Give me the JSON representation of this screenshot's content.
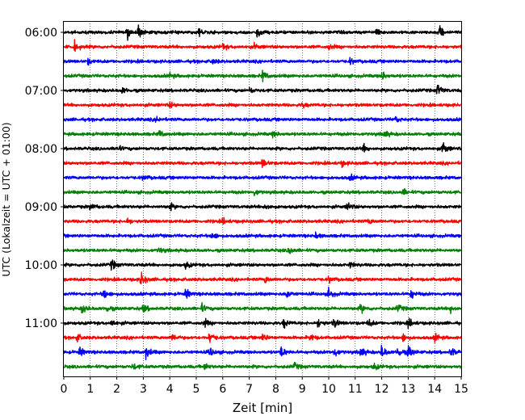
{
  "chart_data": {
    "type": "line",
    "title": "",
    "xlabel": "Zeit  [min]",
    "ylabel": "UTC (Lokalzeit = UTC + 01:00)",
    "xlim": [
      0,
      15
    ],
    "x_ticks": [
      "0",
      "1",
      "2",
      "3",
      "4",
      "5",
      "6",
      "7",
      "8",
      "9",
      "10",
      "11",
      "12",
      "13",
      "14",
      "15"
    ],
    "y_ticks": [
      "06:00",
      "07:00",
      "08:00",
      "09:00",
      "10:00",
      "11:00"
    ],
    "grid": "vertical dotted at each minute",
    "legend": "none",
    "trace_colors": [
      "#000000",
      "#ff0000",
      "#0000ff",
      "#008000"
    ],
    "series": [
      {
        "start": "06:00",
        "color": "#000000",
        "events": [
          [
            2.4,
            9
          ],
          [
            2.8,
            9
          ],
          [
            5.1,
            7
          ],
          [
            7.3,
            8
          ],
          [
            11.8,
            6
          ],
          [
            14.2,
            10
          ]
        ]
      },
      {
        "start": "06:15",
        "color": "#ff0000",
        "events": [
          [
            0.4,
            7
          ],
          [
            6.0,
            4
          ],
          [
            7.2,
            4
          ],
          [
            10.0,
            4
          ]
        ]
      },
      {
        "start": "06:30",
        "color": "#0000ff",
        "events": [
          [
            0.9,
            4
          ],
          [
            5.6,
            4
          ],
          [
            10.8,
            4
          ]
        ]
      },
      {
        "start": "06:45",
        "color": "#008000",
        "events": [
          [
            7.5,
            8
          ],
          [
            12.0,
            7
          ],
          [
            4.0,
            4
          ]
        ]
      },
      {
        "start": "07:00",
        "color": "#000000",
        "events": [
          [
            2.2,
            5
          ],
          [
            7.0,
            4
          ],
          [
            14.1,
            10
          ]
        ]
      },
      {
        "start": "07:15",
        "color": "#ff0000",
        "events": [
          [
            4.0,
            4
          ],
          [
            9.0,
            4
          ]
        ]
      },
      {
        "start": "07:30",
        "color": "#0000ff",
        "events": [
          [
            3.5,
            4
          ],
          [
            12.5,
            5
          ]
        ]
      },
      {
        "start": "07:45",
        "color": "#008000",
        "events": [
          [
            3.6,
            5
          ],
          [
            7.9,
            5
          ],
          [
            12.1,
            6
          ]
        ]
      },
      {
        "start": "08:00",
        "color": "#000000",
        "events": [
          [
            2.0,
            5
          ],
          [
            11.3,
            6
          ],
          [
            14.3,
            11
          ]
        ]
      },
      {
        "start": "08:15",
        "color": "#ff0000",
        "events": [
          [
            7.5,
            7
          ],
          [
            10.5,
            4
          ]
        ]
      },
      {
        "start": "08:30",
        "color": "#0000ff",
        "events": [
          [
            3.0,
            4
          ],
          [
            10.8,
            4
          ]
        ]
      },
      {
        "start": "08:45",
        "color": "#008000",
        "events": [
          [
            7.2,
            5
          ],
          [
            12.8,
            5
          ]
        ]
      },
      {
        "start": "09:00",
        "color": "#000000",
        "events": [
          [
            1.0,
            5
          ],
          [
            4.0,
            5
          ],
          [
            7.6,
            6
          ],
          [
            10.7,
            7
          ]
        ]
      },
      {
        "start": "09:15",
        "color": "#ff0000",
        "events": [
          [
            2.4,
            4
          ],
          [
            6.0,
            4
          ],
          [
            11.5,
            4
          ]
        ]
      },
      {
        "start": "09:30",
        "color": "#0000ff",
        "events": [
          [
            5.6,
            6
          ],
          [
            9.5,
            4
          ]
        ]
      },
      {
        "start": "09:45",
        "color": "#008000",
        "events": [
          [
            8.5,
            6
          ],
          [
            3.6,
            4
          ]
        ]
      },
      {
        "start": "10:00",
        "color": "#000000",
        "events": [
          [
            1.8,
            8
          ],
          [
            4.6,
            5
          ],
          [
            10.8,
            4
          ]
        ]
      },
      {
        "start": "10:15",
        "color": "#ff0000",
        "events": [
          [
            2.9,
            12
          ],
          [
            7.6,
            5
          ],
          [
            10.0,
            4
          ]
        ]
      },
      {
        "start": "10:30",
        "color": "#0000ff",
        "events": [
          [
            1.5,
            8
          ],
          [
            4.6,
            8
          ],
          [
            8.4,
            7
          ],
          [
            10.0,
            8
          ],
          [
            13.1,
            7
          ]
        ]
      },
      {
        "start": "10:45",
        "color": "#008000",
        "events": [
          [
            0.7,
            8
          ],
          [
            1.6,
            6
          ],
          [
            3.0,
            6
          ],
          [
            5.2,
            6
          ],
          [
            11.2,
            7
          ],
          [
            12.6,
            6
          ],
          [
            14.6,
            6
          ]
        ]
      },
      {
        "start": "11:00",
        "color": "#000000",
        "events": [
          [
            1.8,
            6
          ],
          [
            5.3,
            6
          ],
          [
            8.3,
            7
          ],
          [
            9.6,
            7
          ],
          [
            10.2,
            7
          ],
          [
            11.5,
            6
          ],
          [
            13.0,
            7
          ]
        ]
      },
      {
        "start": "11:15",
        "color": "#ff0000",
        "events": [
          [
            0.5,
            6
          ],
          [
            4.1,
            6
          ],
          [
            5.5,
            9
          ],
          [
            7.5,
            6
          ],
          [
            9.3,
            6
          ],
          [
            12.8,
            6
          ],
          [
            14.0,
            6
          ]
        ]
      },
      {
        "start": "11:30",
        "color": "#0000ff",
        "events": [
          [
            0.6,
            7
          ],
          [
            3.1,
            10
          ],
          [
            5.5,
            8
          ],
          [
            8.2,
            9
          ],
          [
            10.2,
            8
          ],
          [
            11.2,
            9
          ],
          [
            12.0,
            10
          ],
          [
            12.6,
            9
          ],
          [
            13.0,
            10
          ],
          [
            14.6,
            8
          ]
        ]
      },
      {
        "start": "11:45",
        "color": "#008000",
        "events": [
          [
            2.6,
            5
          ],
          [
            5.3,
            5
          ],
          [
            8.7,
            5
          ],
          [
            11.7,
            5
          ]
        ]
      }
    ]
  }
}
